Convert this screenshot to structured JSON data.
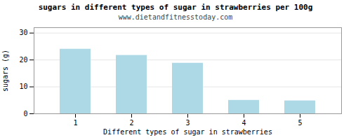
{
  "chart_data": {
    "type": "bar",
    "title": "sugars in different types of sugar in strawberries per 100g",
    "subtitle": "www.dietandfitnesstoday.com",
    "xlabel": "Different types of sugar in strawberries",
    "ylabel": "sugars (g)",
    "categories": [
      1,
      2,
      3,
      4,
      5
    ],
    "values": [
      24.0,
      21.7,
      18.8,
      5.0,
      4.8
    ],
    "color": "#add8e6",
    "ylim": [
      0,
      32
    ],
    "yticks": [
      0,
      10,
      20,
      30
    ],
    "grid": true
  }
}
